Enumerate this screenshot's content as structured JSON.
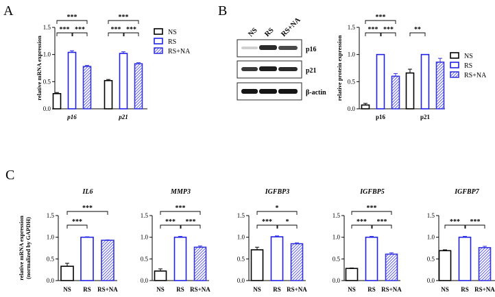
{
  "colors": {
    "ns": "#000000",
    "rs": "#1f1fe6",
    "rsna": "#3535e0"
  },
  "panels": {
    "a": "A",
    "b": "B",
    "c": "C"
  },
  "legend": [
    "NS",
    "RS",
    "RS+NA"
  ],
  "blot": {
    "lanes": [
      "NS",
      "RS",
      "RS+NA"
    ],
    "proteins": [
      "p16",
      "p21",
      "β-actin"
    ]
  },
  "chart_data": [
    {
      "id": "A",
      "type": "bar",
      "ylabel": "relative mRNA expression",
      "ylim": [
        0,
        1.5
      ],
      "yticks": [
        "0.0",
        "0.5",
        "1.0",
        "1.5"
      ],
      "categories": [
        "p16",
        "p21"
      ],
      "series": [
        {
          "name": "NS",
          "values": [
            0.28,
            0.52
          ],
          "errors": [
            0.02,
            0.02
          ]
        },
        {
          "name": "RS",
          "values": [
            1.04,
            1.02
          ],
          "errors": [
            0.03,
            0.03
          ]
        },
        {
          "name": "RS+NA",
          "values": [
            0.78,
            0.83
          ],
          "errors": [
            0.02,
            0.02
          ]
        }
      ],
      "annotations": [
        {
          "group": 0,
          "from": 0,
          "to": 2,
          "label": "***",
          "level": 1
        },
        {
          "group": 0,
          "from": 0,
          "to": 1,
          "label": "***",
          "level": 0
        },
        {
          "group": 0,
          "from": 1,
          "to": 2,
          "label": "***",
          "level": 0
        },
        {
          "group": 1,
          "from": 0,
          "to": 2,
          "label": "***",
          "level": 1
        },
        {
          "group": 1,
          "from": 0,
          "to": 1,
          "label": "***",
          "level": 0
        },
        {
          "group": 1,
          "from": 1,
          "to": 2,
          "label": "***",
          "level": 0
        }
      ]
    },
    {
      "id": "B",
      "type": "bar",
      "ylabel": "relative protein expression",
      "ylim": [
        0,
        1.5
      ],
      "yticks": [
        "0.0",
        "0.5",
        "1.0",
        "1.5"
      ],
      "categories": [
        "p16",
        "p21"
      ],
      "series": [
        {
          "name": "NS",
          "values": [
            0.07,
            0.66
          ],
          "errors": [
            0.03,
            0.07
          ]
        },
        {
          "name": "RS",
          "values": [
            1.0,
            1.0
          ],
          "errors": [
            0.0,
            0.0
          ]
        },
        {
          "name": "RS+NA",
          "values": [
            0.6,
            0.86
          ],
          "errors": [
            0.05,
            0.07
          ]
        }
      ],
      "annotations": [
        {
          "group": 0,
          "from": 0,
          "to": 2,
          "label": "***",
          "level": 1
        },
        {
          "group": 0,
          "from": 0,
          "to": 1,
          "label": "***",
          "level": 0
        },
        {
          "group": 0,
          "from": 1,
          "to": 2,
          "label": "***",
          "level": 0
        },
        {
          "group": 1,
          "from": 0,
          "to": 1,
          "label": "**",
          "level": 0
        }
      ]
    },
    {
      "id": "C-IL6",
      "type": "bar",
      "title": "IL6",
      "ylabel": "relative mRNA expression (normalized by GAPDH)",
      "ylim": [
        0,
        1.5
      ],
      "yticks": [
        "0.0",
        "0.5",
        "1.0",
        "1.5"
      ],
      "categories": [
        "NS",
        "RS",
        "RS+NA"
      ],
      "values": [
        0.33,
        1.0,
        0.93
      ],
      "errors": [
        0.07,
        0.01,
        0.01
      ],
      "annotations": [
        {
          "from": 0,
          "to": 2,
          "label": "***",
          "level": 1
        },
        {
          "from": 0,
          "to": 1,
          "label": "***",
          "level": 0
        }
      ]
    },
    {
      "id": "C-MMP3",
      "type": "bar",
      "title": "MMP3",
      "ylim": [
        0,
        1.5
      ],
      "yticks": [
        "0.0",
        "0.5",
        "1.0",
        "1.5"
      ],
      "categories": [
        "NS",
        "RS",
        "RS+NA"
      ],
      "values": [
        0.22,
        1.0,
        0.77
      ],
      "errors": [
        0.05,
        0.02,
        0.03
      ],
      "annotations": [
        {
          "from": 0,
          "to": 2,
          "label": "***",
          "level": 1
        },
        {
          "from": 0,
          "to": 1,
          "label": "***",
          "level": 0
        },
        {
          "from": 1,
          "to": 2,
          "label": "***",
          "level": 0
        }
      ]
    },
    {
      "id": "C-IGFBP3",
      "type": "bar",
      "title": "IGFBP3",
      "ylim": [
        0,
        1.5
      ],
      "yticks": [
        "0.0",
        "0.5",
        "1.0",
        "1.5"
      ],
      "categories": [
        "NS",
        "RS",
        "RS+NA"
      ],
      "values": [
        0.71,
        1.01,
        0.85
      ],
      "errors": [
        0.06,
        0.02,
        0.02
      ],
      "annotations": [
        {
          "from": 0,
          "to": 2,
          "label": "*",
          "level": 1
        },
        {
          "from": 0,
          "to": 1,
          "label": "***",
          "level": 0
        },
        {
          "from": 1,
          "to": 2,
          "label": "*",
          "level": 0
        }
      ]
    },
    {
      "id": "C-IGFBP5",
      "type": "bar",
      "title": "IGFBP5",
      "ylim": [
        0,
        1.5
      ],
      "yticks": [
        "0.0",
        "0.5",
        "1.0",
        "1.5"
      ],
      "categories": [
        "NS",
        "RS",
        "RS+NA"
      ],
      "values": [
        0.28,
        1.0,
        0.61
      ],
      "errors": [
        0.01,
        0.02,
        0.03
      ],
      "annotations": [
        {
          "from": 0,
          "to": 2,
          "label": "***",
          "level": 1
        },
        {
          "from": 0,
          "to": 1,
          "label": "***",
          "level": 0
        },
        {
          "from": 1,
          "to": 2,
          "label": "***",
          "level": 0
        }
      ]
    },
    {
      "id": "C-IGFBP7",
      "type": "bar",
      "title": "IGFBP7",
      "ylim": [
        0,
        1.5
      ],
      "yticks": [
        "0.0",
        "0.5",
        "1.0",
        "1.5"
      ],
      "categories": [
        "NS",
        "RS",
        "RS+NA"
      ],
      "values": [
        0.69,
        1.0,
        0.76
      ],
      "errors": [
        0.02,
        0.02,
        0.03
      ],
      "annotations": [
        {
          "from": 0,
          "to": 1,
          "label": "***",
          "level": 0
        },
        {
          "from": 1,
          "to": 2,
          "label": "***",
          "level": 0
        }
      ]
    }
  ]
}
